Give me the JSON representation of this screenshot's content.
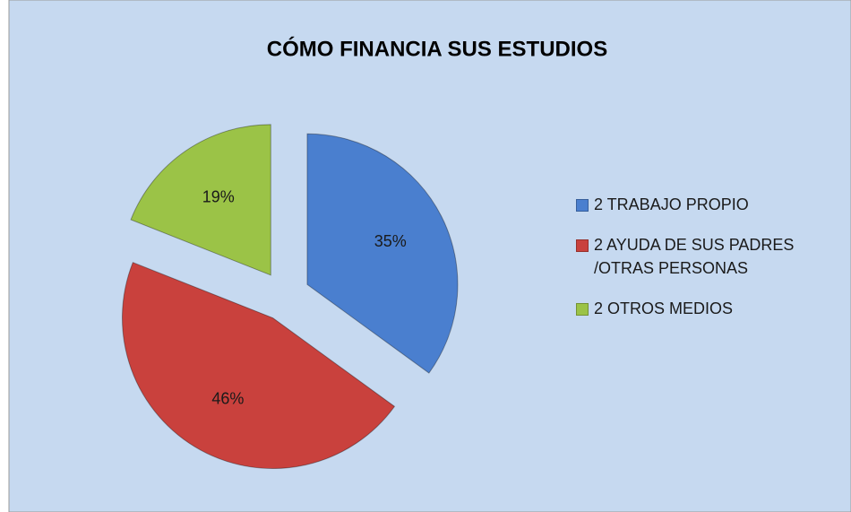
{
  "chart_data": {
    "type": "pie",
    "title": "CÓMO FINANCIA SUS ESTUDIOS",
    "categories": [
      "2 TRABAJO PROPIO",
      "2 AYUDA DE SUS PADRES /OTRAS PERSONAS",
      "2 OTROS MEDIOS"
    ],
    "values": [
      35,
      46,
      19
    ],
    "value_labels": [
      "35%",
      "46%",
      "19%"
    ],
    "colors": [
      "#4a7fcf",
      "#c9413d",
      "#9bc347"
    ],
    "legend": "right"
  }
}
